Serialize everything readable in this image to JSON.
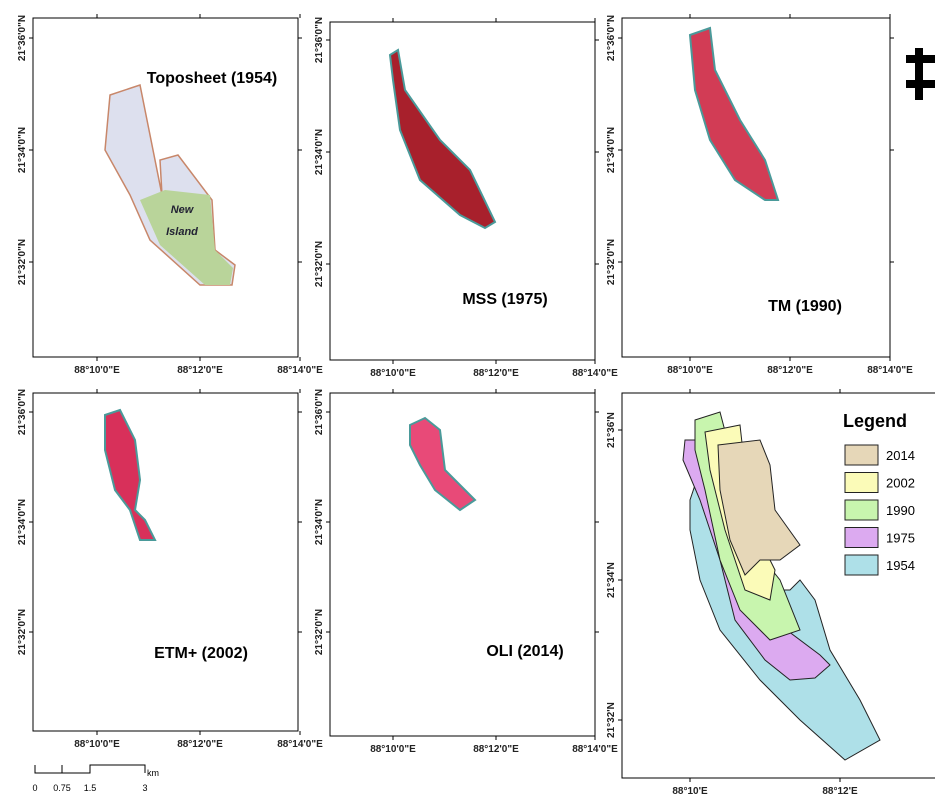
{
  "panels": [
    {
      "label": "Toposheet (1954)",
      "y_tick_labels": [
        "21°36'0\"N",
        "21°34'0\"N",
        "21°32'0\"N"
      ],
      "x_tick_labels": [
        "88°10'0\"E",
        "88°12'0\"E",
        "88°14'0\"E"
      ]
    },
    {
      "label": "MSS (1975)",
      "y_tick_labels": [
        "21°36'0\"N",
        "21°34'0\"N",
        "21°32'0\"N"
      ],
      "x_tick_labels": [
        "88°10'0\"E",
        "88°12'0\"E",
        "88°14'0\"E"
      ]
    },
    {
      "label": "TM (1990)",
      "y_tick_labels": [
        "21°36'0\"N",
        "21°34'0\"N",
        "21°32'0\"N"
      ],
      "x_tick_labels": [
        "88°10'0\"E",
        "88°12'0\"E",
        "88°14'0\"E"
      ]
    },
    {
      "label": "ETM+ (2002)",
      "y_tick_labels": [
        "21°36'0\"N",
        "21°34'0\"N",
        "21°32'0\"N"
      ],
      "x_tick_labels": [
        "88°10'0\"E",
        "88°12'0\"E",
        "88°14'0\"E"
      ]
    },
    {
      "label": "OLI (2014)",
      "y_tick_labels": [
        "21°36'0\"N",
        "21°34'0\"N",
        "21°32'0\"N"
      ],
      "x_tick_labels": [
        "88°10'0\"E",
        "88°12'0\"E",
        "88°14'0\"E"
      ]
    },
    {
      "y_tick_labels": [
        "21°36'N",
        "21°34'N",
        "21°32'N"
      ],
      "x_tick_labels": [
        "88°10'E",
        "88°12'E"
      ]
    }
  ],
  "map_annotation": [
    "New",
    "Island"
  ],
  "legend": {
    "title": "Legend",
    "entries": [
      {
        "label": "2014",
        "color": "#e6d7b8"
      },
      {
        "label": "2002",
        "color": "#fbfbb8"
      },
      {
        "label": "1990",
        "color": "#c8f5ae"
      },
      {
        "label": "1975",
        "color": "#dcaaf0"
      },
      {
        "label": "1954",
        "color": "#aee0e8"
      }
    ]
  },
  "scale_bar": {
    "labels": [
      "0",
      "0.75",
      "1.5",
      "3"
    ],
    "unit": "km"
  }
}
